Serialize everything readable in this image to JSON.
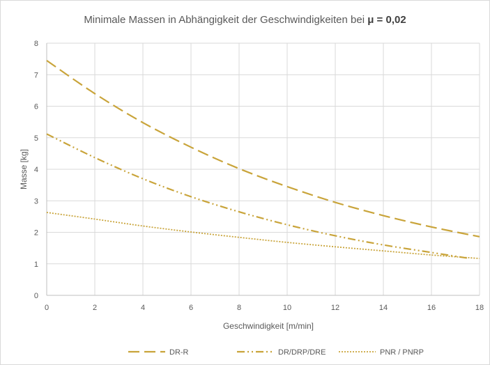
{
  "chart_data": {
    "type": "line",
    "title_prefix": "Minimale Massen in Abhängigkeit der Geschwindigkeiten bei ",
    "title_bold": "μ = 0,02",
    "xlabel": "Geschwindigkeit [m/min]",
    "ylabel": "Masse [kg]",
    "xlim": [
      0,
      18
    ],
    "ylim": [
      0,
      8
    ],
    "x_ticks": [
      "0",
      "2",
      "4",
      "6",
      "8",
      "10",
      "12",
      "14",
      "16",
      "18"
    ],
    "y_ticks": [
      "0",
      "1",
      "2",
      "3",
      "4",
      "5",
      "6",
      "7",
      "8"
    ],
    "grid": true,
    "legend_position": "bottom",
    "line_color": "#C9A43A",
    "series": [
      {
        "name": "DR-R",
        "style": "long-dash",
        "x": [
          0,
          2,
          4,
          6,
          8,
          10,
          12,
          14,
          16,
          18
        ],
        "y": [
          7.45,
          6.4,
          5.48,
          4.7,
          4.02,
          3.45,
          2.95,
          2.53,
          2.17,
          1.86
        ]
      },
      {
        "name": "DR/DRP/DRE",
        "style": "dash-dot-dot",
        "x": [
          0,
          2,
          4,
          6,
          8,
          10,
          12,
          14,
          16,
          17.5
        ],
        "y": [
          5.12,
          4.37,
          3.7,
          3.13,
          2.65,
          2.24,
          1.89,
          1.6,
          1.36,
          1.18
        ]
      },
      {
        "name": "PNR / PNRP",
        "style": "dotted",
        "x": [
          0,
          2,
          4,
          6,
          8,
          10,
          12,
          14,
          16,
          18
        ],
        "y": [
          2.63,
          2.42,
          2.2,
          2.01,
          1.84,
          1.68,
          1.54,
          1.41,
          1.28,
          1.17
        ]
      }
    ]
  }
}
